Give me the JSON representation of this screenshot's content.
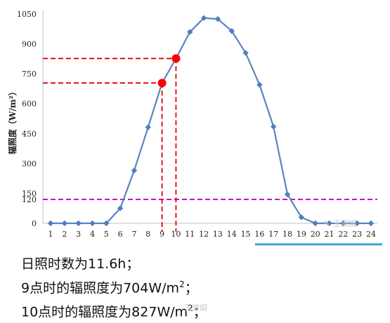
{
  "chart_data": {
    "type": "line",
    "ylabel": "辐照度（W/m²）",
    "x": [
      1,
      2,
      3,
      4,
      5,
      6,
      7,
      8,
      9,
      10,
      11,
      12,
      13,
      14,
      15,
      16,
      17,
      18,
      19,
      20,
      21,
      22,
      23,
      24
    ],
    "series": [
      {
        "values": [
          0,
          0,
          0,
          0,
          0,
          75,
          265,
          482,
          704,
          827,
          960,
          1030,
          1025,
          965,
          855,
          695,
          485,
          145,
          30,
          0,
          0,
          0,
          0,
          0
        ]
      }
    ],
    "y_ticks": [
      0,
      120,
      150,
      300,
      450,
      600,
      750,
      900,
      1050
    ],
    "ylim": [
      0,
      1050
    ],
    "xlim": [
      1,
      24
    ],
    "line_color": "#5b84bf",
    "highlights": [
      {
        "x": 9,
        "y": 704,
        "color": "#ff0000"
      },
      {
        "x": 10,
        "y": 827,
        "color": "#ff0000"
      }
    ],
    "reference_line": {
      "y": 120,
      "color": "#cc00cc"
    },
    "grid": false
  },
  "watermark": {
    "text": "王淑娟"
  },
  "notes": {
    "line1": "日照时数为11.6h；",
    "line2_prefix": "9点时的辐照度为704W/m",
    "line2_sup": "2",
    "line2_suffix": "；",
    "line3_prefix": "10点时的辐照度为827W/m",
    "line3_sup": "2",
    "line3_suffix": "；"
  }
}
